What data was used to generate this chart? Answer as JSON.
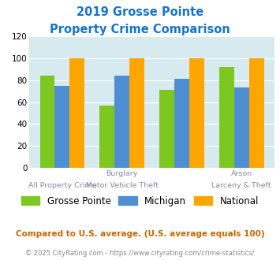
{
  "title_line1": "2019 Grosse Pointe",
  "title_line2": "Property Crime Comparison",
  "title_color": "#1874CD",
  "grosse_pointe": [
    84,
    57,
    71,
    92
  ],
  "michigan": [
    75,
    84,
    81,
    73
  ],
  "national": [
    100,
    100,
    100,
    100
  ],
  "bar_colors": {
    "grosse_pointe": "#7DC820",
    "michigan": "#4E8FD4",
    "national": "#FFA500"
  },
  "ylim": [
    0,
    120
  ],
  "yticks": [
    0,
    20,
    40,
    60,
    80,
    100,
    120
  ],
  "background_color": "#D6EAF0",
  "legend_labels": [
    "Grosse Pointe",
    "Michigan",
    "National"
  ],
  "x_label_top": [
    "",
    "Burglary",
    "",
    "Arson"
  ],
  "x_label_bottom": [
    "All Property Crime",
    "Motor Vehicle Theft",
    "",
    "Larceny & Theft"
  ],
  "footnote1": "Compared to U.S. average. (U.S. average equals 100)",
  "footnote2": "© 2025 CityRating.com - https://www.cityrating.com/crime-statistics/",
  "footnote1_color": "#CC6600",
  "footnote2_color": "#888888"
}
